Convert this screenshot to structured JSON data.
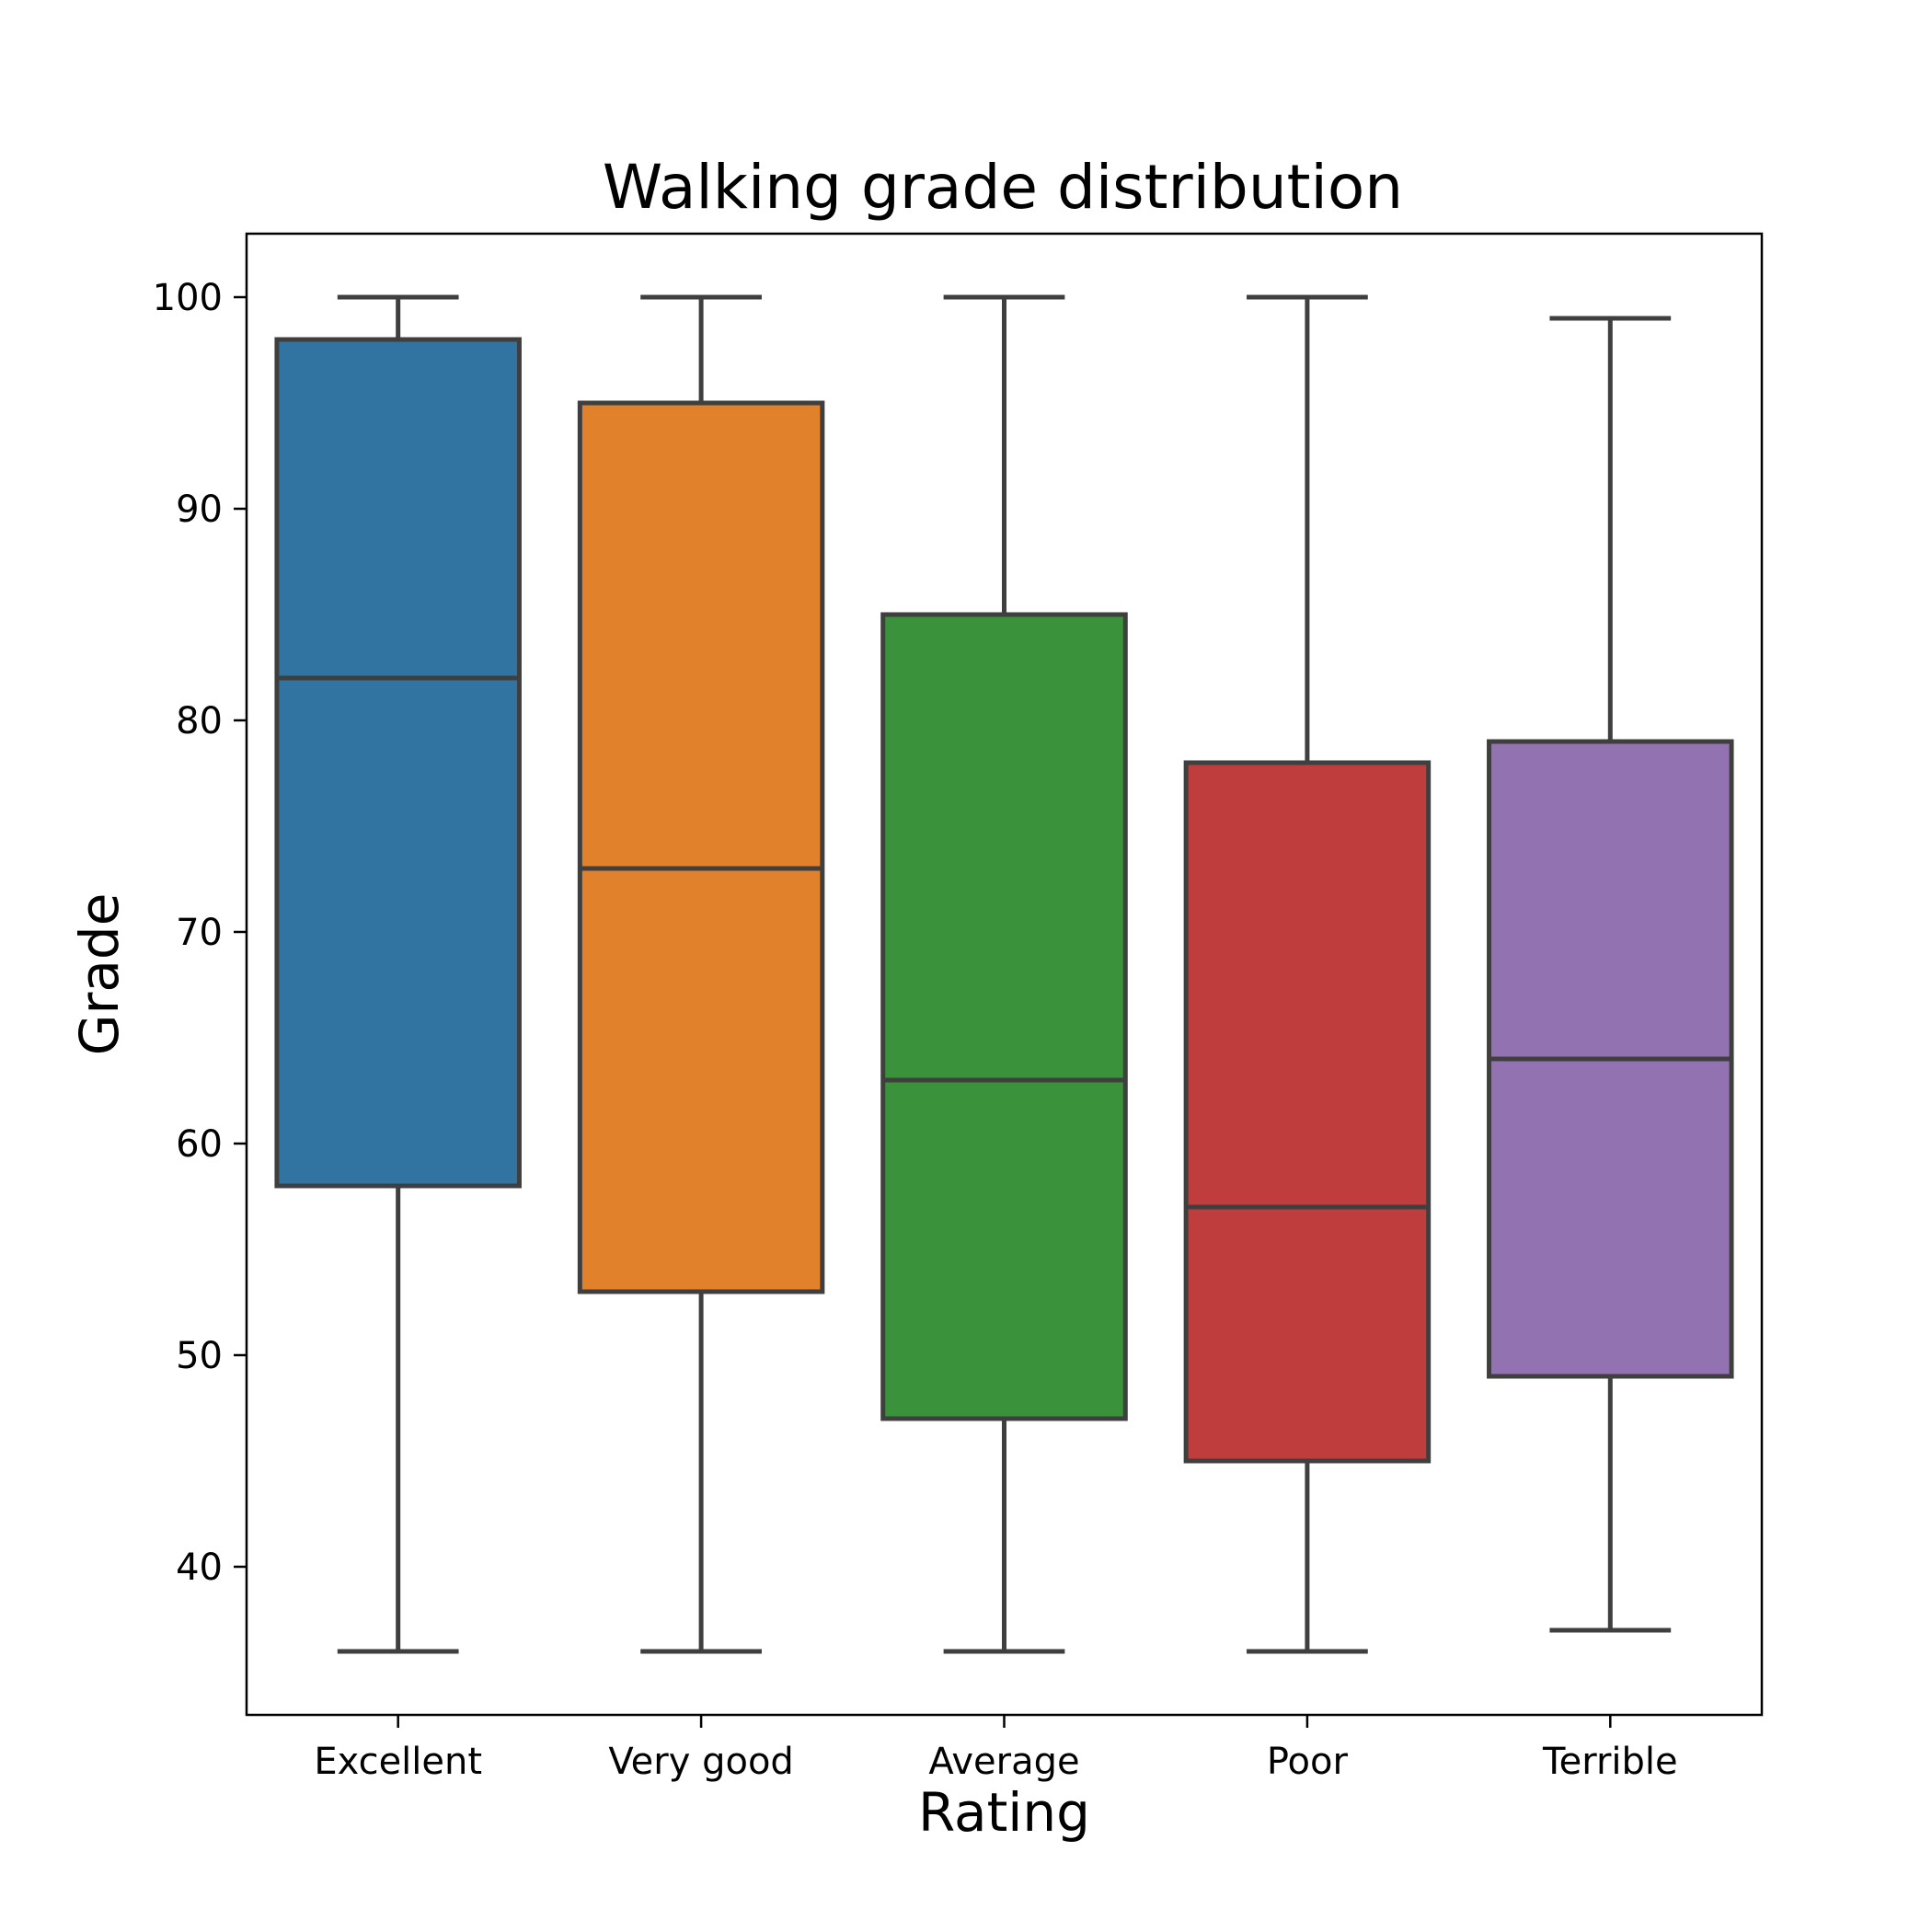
{
  "chart_data": {
    "type": "box",
    "title": "Walking grade distribution",
    "xlabel": "Rating",
    "ylabel": "Grade",
    "ylim": [
      33,
      103
    ],
    "yticks": [
      40,
      50,
      60,
      70,
      80,
      90,
      100
    ],
    "grid": false,
    "legend": "none",
    "categories": [
      "Excellent",
      "Very good",
      "Average",
      "Poor",
      "Terrible"
    ],
    "boxes": [
      {
        "category": "Excellent",
        "min": 36,
        "q1": 58,
        "median": 82,
        "q3": 98,
        "max": 100,
        "color": "#3274a1"
      },
      {
        "category": "Very good",
        "min": 36,
        "q1": 53,
        "median": 73,
        "q3": 95,
        "max": 100,
        "color": "#e1812c"
      },
      {
        "category": "Average",
        "min": 36,
        "q1": 47,
        "median": 63,
        "q3": 85,
        "max": 100,
        "color": "#3a923a"
      },
      {
        "category": "Poor",
        "min": 36,
        "q1": 45,
        "median": 57,
        "q3": 78,
        "max": 100,
        "color": "#c03d3e"
      },
      {
        "category": "Terrible",
        "min": 37,
        "q1": 49,
        "median": 64,
        "q3": 79,
        "max": 99,
        "color": "#9372b2"
      }
    ],
    "line_color": "#3f3f3f"
  }
}
